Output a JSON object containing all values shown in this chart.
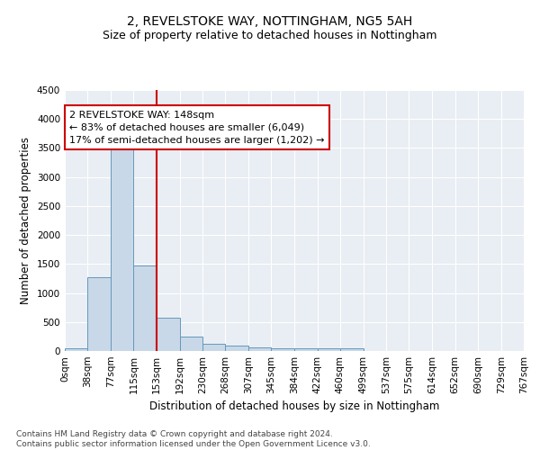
{
  "title": "2, REVELSTOKE WAY, NOTTINGHAM, NG5 5AH",
  "subtitle": "Size of property relative to detached houses in Nottingham",
  "xlabel": "Distribution of detached houses by size in Nottingham",
  "ylabel": "Number of detached properties",
  "bar_edges": [
    0,
    38,
    77,
    115,
    153,
    192,
    230,
    268,
    307,
    345,
    384,
    422,
    460,
    499,
    537,
    575,
    614,
    652,
    690,
    729,
    767
  ],
  "bar_heights": [
    50,
    1280,
    3500,
    1480,
    580,
    245,
    130,
    90,
    55,
    45,
    45,
    45,
    50,
    0,
    0,
    0,
    0,
    0,
    0,
    0
  ],
  "bar_color": "#c8d8e8",
  "bar_edge_color": "#6699bb",
  "property_line_x": 153,
  "property_line_color": "#cc0000",
  "annotation_text": "2 REVELSTOKE WAY: 148sqm\n← 83% of detached houses are smaller (6,049)\n17% of semi-detached houses are larger (1,202) →",
  "annotation_box_color": "#ffffff",
  "annotation_box_edge_color": "#cc0000",
  "ylim": [
    0,
    4500
  ],
  "yticks": [
    0,
    500,
    1000,
    1500,
    2000,
    2500,
    3000,
    3500,
    4000,
    4500
  ],
  "tick_labels": [
    "0sqm",
    "38sqm",
    "77sqm",
    "115sqm",
    "153sqm",
    "192sqm",
    "230sqm",
    "268sqm",
    "307sqm",
    "345sqm",
    "384sqm",
    "422sqm",
    "460sqm",
    "499sqm",
    "537sqm",
    "575sqm",
    "614sqm",
    "652sqm",
    "690sqm",
    "729sqm",
    "767sqm"
  ],
  "bg_color": "#e8eef4",
  "footer_text": "Contains HM Land Registry data © Crown copyright and database right 2024.\nContains public sector information licensed under the Open Government Licence v3.0.",
  "title_fontsize": 10,
  "subtitle_fontsize": 9,
  "xlabel_fontsize": 8.5,
  "ylabel_fontsize": 8.5,
  "tick_fontsize": 7.5,
  "annotation_fontsize": 8,
  "footer_fontsize": 6.5
}
